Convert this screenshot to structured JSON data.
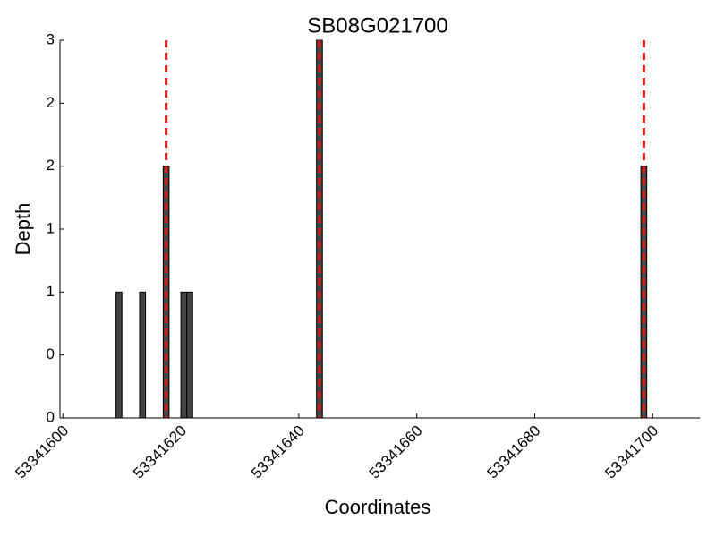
{
  "chart_data": {
    "type": "bar",
    "title": "SB08G021700",
    "xlabel": "Coordinates",
    "ylabel": "Depth",
    "x": [
      53341609.5,
      53341613.5,
      53341617.5,
      53341620.5,
      53341621.5,
      53341643.5,
      53341698.5
    ],
    "values": [
      1,
      1,
      2,
      1,
      1,
      3,
      2
    ],
    "color": "#444444",
    "vlines": [
      53341617.5,
      53341643.5,
      53341698.5
    ],
    "vline_color": "#ee1111",
    "xlim": [
      53341599.5,
      53341708
    ],
    "xticks": [
      53341600,
      53341620,
      53341640,
      53341660,
      53341680,
      53341700
    ],
    "ylim": [
      0,
      3
    ],
    "yticks": [
      {
        "value": 0,
        "label": "0"
      },
      {
        "value": 0.5,
        "label": "0"
      },
      {
        "value": 1,
        "label": "1"
      },
      {
        "value": 1.5,
        "label": "1"
      },
      {
        "value": 2,
        "label": "2"
      },
      {
        "value": 2.5,
        "label": "2"
      },
      {
        "value": 3,
        "label": "3"
      }
    ]
  }
}
